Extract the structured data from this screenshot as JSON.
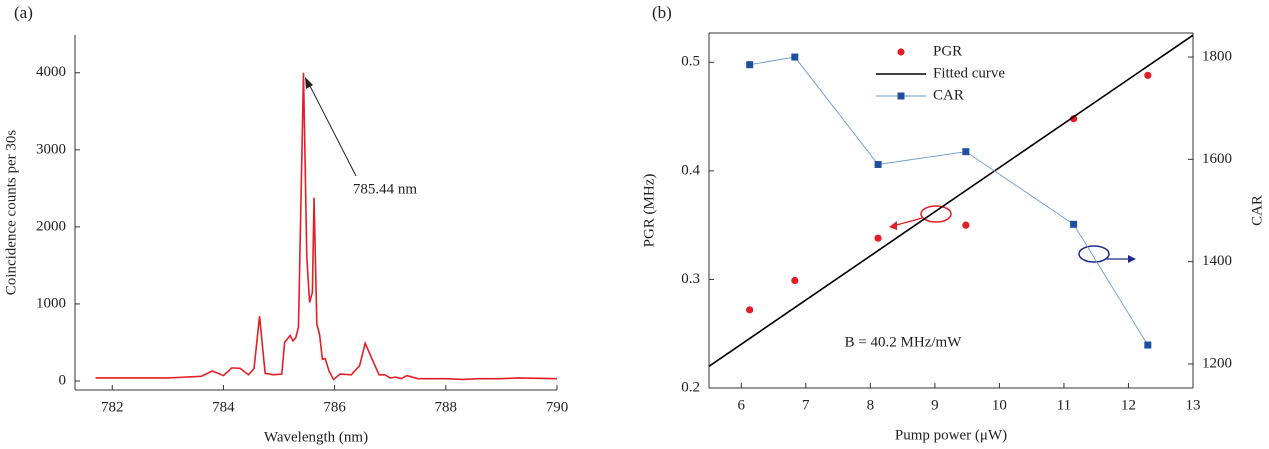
{
  "chart_data": [
    {
      "type": "line",
      "panel_label": "(a)",
      "xlabel": "Wavelength (nm)",
      "ylabel": "Coincidence counts per 30s",
      "annotation": "785.44 nm",
      "x": [
        781.7,
        782.5,
        783,
        783.3,
        783.6,
        783.8,
        784.0,
        784.15,
        784.3,
        784.45,
        784.55,
        784.65,
        784.75,
        784.9,
        785.05,
        785.1,
        785.2,
        785.25,
        785.3,
        785.35,
        785.44,
        785.5,
        785.55,
        785.6,
        785.63,
        785.68,
        785.73,
        785.78,
        785.83,
        785.9,
        785.98,
        786.1,
        786.3,
        786.45,
        786.55,
        786.7,
        786.8,
        786.9,
        787.0,
        787.1,
        787.2,
        787.3,
        787.5,
        788,
        788.3,
        788.6,
        789,
        789.3,
        790
      ],
      "series": [
        {
          "color": "#e41e26",
          "values": [
            40,
            40,
            40,
            50,
            60,
            130,
            70,
            170,
            165,
            80,
            160,
            840,
            100,
            80,
            90,
            500,
            590,
            520,
            560,
            700,
            4000,
            1600,
            1020,
            1150,
            2380,
            740,
            600,
            280,
            290,
            130,
            20,
            90,
            80,
            200,
            490,
            240,
            80,
            80,
            40,
            50,
            30,
            70,
            30,
            30,
            20,
            30,
            30,
            40,
            30
          ]
        }
      ],
      "xlim": [
        781.33,
        790
      ],
      "xticks": [
        782,
        784,
        786,
        788,
        790
      ],
      "ylim": [
        -117,
        4490
      ],
      "yticks": [
        0,
        1000,
        2000,
        3000,
        4000
      ]
    },
    {
      "type": "scatter",
      "panel_label": "(b)",
      "xlabel": "Pump power (μW)",
      "ylabel": "PGR (MHz)",
      "y2label": "CAR",
      "annotation": "B = 40.2 MHz/mW",
      "legend": "upper center",
      "x": [
        6.13,
        6.83,
        8.12,
        9.48,
        11.15,
        12.3
      ],
      "series": [
        {
          "name": "PGR",
          "color": "#e41e26",
          "marker": "circle",
          "line": false,
          "values": [
            0.272,
            0.299,
            0.338,
            0.35,
            0.448,
            0.488
          ]
        },
        {
          "name": "Fitted curve",
          "color": "#000000",
          "marker": "none",
          "line": true,
          "x": [
            5.5,
            13
          ],
          "values": [
            0.22,
            0.525
          ]
        },
        {
          "name": "CAR",
          "color": "#1f4fa0",
          "line_color": "#6a9ad8",
          "marker": "square",
          "line": true,
          "axis": "y2",
          "values": [
            1785,
            1800,
            1590,
            1615,
            1473,
            1237
          ]
        }
      ],
      "xlim": [
        5.5,
        13
      ],
      "xticks": [
        6,
        7,
        8,
        9,
        10,
        11,
        12,
        13
      ],
      "ylim": [
        0.2,
        0.527
      ],
      "yticks": [
        0.2,
        0.3,
        0.4,
        0.5
      ],
      "y2lim": [
        1153,
        1847
      ],
      "y2ticks": [
        1200,
        1400,
        1600,
        1800
      ]
    }
  ]
}
